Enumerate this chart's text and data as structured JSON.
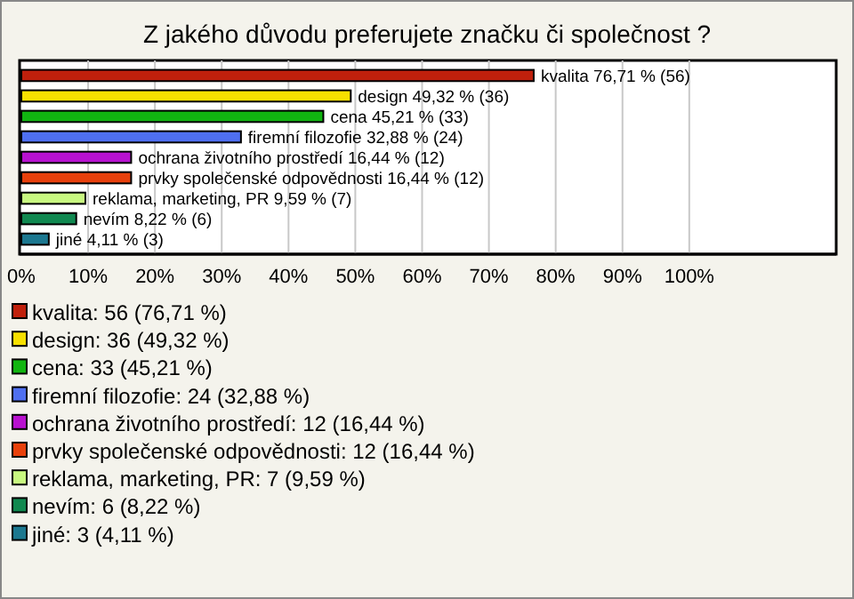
{
  "chart_data": {
    "type": "bar",
    "orientation": "horizontal",
    "title": "Z jakého důvodu preferujete značku či společnost ?",
    "categories": [
      null,
      null,
      null,
      null,
      null,
      null,
      null,
      null,
      null
    ],
    "series": [
      {
        "name": "kvalita: 56 (76,71 %)",
        "color": "#c0200c",
        "values": [
          76.71,
          null,
          null,
          null,
          null,
          null,
          null,
          null,
          null
        ],
        "value_labels": [
          "kvalita 76,71 % (56)",
          null,
          null,
          null,
          null,
          null,
          null,
          null,
          null
        ]
      },
      {
        "name": "design: 36 (49,32 %)",
        "color": "#f7e000",
        "values": [
          null,
          49.32,
          null,
          null,
          null,
          null,
          null,
          null,
          null
        ],
        "value_labels": [
          null,
          "design 49,32 % (36)",
          null,
          null,
          null,
          null,
          null,
          null,
          null
        ]
      },
      {
        "name": "cena: 33 (45,21 %)",
        "color": "#11b511",
        "values": [
          null,
          null,
          45.21,
          null,
          null,
          null,
          null,
          null,
          null
        ],
        "value_labels": [
          null,
          null,
          "cena 45,21 % (33)",
          null,
          null,
          null,
          null,
          null,
          null
        ]
      },
      {
        "name": "firemní filozofie: 24 (32,88 %)",
        "color": "#4f6ff0",
        "values": [
          null,
          null,
          null,
          32.88,
          null,
          null,
          null,
          null,
          null
        ],
        "value_labels": [
          null,
          null,
          null,
          "firemní filozofie 32,88 % (24)",
          null,
          null,
          null,
          null,
          null
        ]
      },
      {
        "name": "ochrana životního prostředí: 12 (16,44 %)",
        "color": "#b811d0",
        "values": [
          null,
          null,
          null,
          null,
          16.44,
          null,
          null,
          null,
          null
        ],
        "value_labels": [
          null,
          null,
          null,
          null,
          "ochrana životního prostředí 16,44 % (12)",
          null,
          null,
          null,
          null
        ]
      },
      {
        "name": "prvky společenské odpovědnosti: 12 (16,44 %)",
        "color": "#e8400c",
        "values": [
          null,
          null,
          null,
          null,
          null,
          16.44,
          null,
          null,
          null
        ],
        "value_labels": [
          null,
          null,
          null,
          null,
          null,
          "prvky společenské odpovědnosti 16,44 % (12)",
          null,
          null,
          null
        ]
      },
      {
        "name": "reklama, marketing, PR: 7 (9,59 %)",
        "color": "#c8f880",
        "values": [
          null,
          null,
          null,
          null,
          null,
          null,
          9.59,
          null,
          null
        ],
        "value_labels": [
          null,
          null,
          null,
          null,
          null,
          null,
          "reklama, marketing, PR 9,59 % (7)",
          null,
          null
        ]
      },
      {
        "name": "nevím: 6 (8,22 %)",
        "color": "#108850",
        "values": [
          null,
          null,
          null,
          null,
          null,
          null,
          null,
          8.22,
          null
        ],
        "value_labels": [
          null,
          null,
          null,
          null,
          null,
          null,
          null,
          "nevím 8,22 % (6)",
          null
        ]
      },
      {
        "name": "jiné: 3 (4,11 %)",
        "color": "#1c7890",
        "values": [
          null,
          null,
          null,
          null,
          null,
          null,
          null,
          null,
          4.11
        ],
        "value_labels": [
          null,
          null,
          null,
          null,
          null,
          null,
          null,
          null,
          "jiné 4,11 % (3)"
        ]
      }
    ],
    "xlim": [
      0,
      122
    ],
    "xticks": [
      {
        "value": 0,
        "label": "0%"
      },
      {
        "value": 10,
        "label": "10%"
      },
      {
        "value": 20,
        "label": "20%"
      },
      {
        "value": 30,
        "label": "30%"
      },
      {
        "value": 40,
        "label": "40%"
      },
      {
        "value": 50,
        "label": "50%"
      },
      {
        "value": 60,
        "label": "60%"
      },
      {
        "value": 70,
        "label": "70%"
      },
      {
        "value": 80,
        "label": "80%"
      },
      {
        "value": 90,
        "label": "90%"
      },
      {
        "value": 100,
        "label": "100%"
      }
    ],
    "grid": "x",
    "legend": "bottom",
    "tick_labels": "x"
  }
}
